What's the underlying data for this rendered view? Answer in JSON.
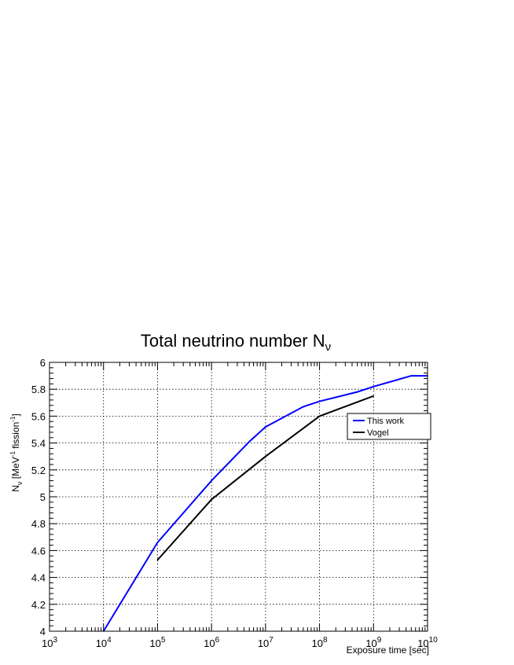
{
  "chart_data": {
    "type": "line",
    "title": "Total neutrino number",
    "title_symbol": "N",
    "title_subscript": "ν",
    "xlabel": "Exposure time [sec]",
    "ylabel": {
      "symbol": "N",
      "subscript": "ν",
      "unit_open": "[MeV",
      "unit_exp1": "-1",
      "unit_mid": " fission",
      "unit_exp2": "-1",
      "unit_close": "]"
    },
    "x_scale": "log",
    "xlim": [
      1000,
      10000000000
    ],
    "ylim": [
      4,
      6
    ],
    "x_ticks": [
      {
        "base": "10",
        "exp": "3",
        "value": 1000
      },
      {
        "base": "10",
        "exp": "4",
        "value": 10000
      },
      {
        "base": "10",
        "exp": "5",
        "value": 100000
      },
      {
        "base": "10",
        "exp": "6",
        "value": 1000000
      },
      {
        "base": "10",
        "exp": "7",
        "value": 10000000
      },
      {
        "base": "10",
        "exp": "8",
        "value": 100000000
      },
      {
        "base": "10",
        "exp": "9",
        "value": 1000000000
      },
      {
        "base": "10",
        "exp": "10",
        "value": 10000000000
      }
    ],
    "y_ticks": [
      "4",
      "4.2",
      "4.4",
      "4.6",
      "4.8",
      "5",
      "5.2",
      "5.4",
      "5.6",
      "5.8",
      "6"
    ],
    "grid": true,
    "legend_position": "right",
    "series": [
      {
        "name": "This work",
        "color": "#0000ff",
        "points": [
          [
            10000,
            4.0
          ],
          [
            100000,
            4.66
          ],
          [
            1000000,
            5.12
          ],
          [
            5000000,
            5.41
          ],
          [
            10000000,
            5.52
          ],
          [
            50000000,
            5.67
          ],
          [
            100000000,
            5.71
          ],
          [
            500000000,
            5.78
          ],
          [
            1000000000,
            5.82
          ],
          [
            5000000000,
            5.9
          ],
          [
            10000000000,
            5.9
          ]
        ]
      },
      {
        "name": "Vogel",
        "color": "#000000",
        "points": [
          [
            100000,
            4.53
          ],
          [
            1000000,
            4.98
          ],
          [
            10000000,
            5.3
          ],
          [
            100000000,
            5.6
          ],
          [
            1000000000,
            5.75
          ]
        ]
      }
    ]
  }
}
